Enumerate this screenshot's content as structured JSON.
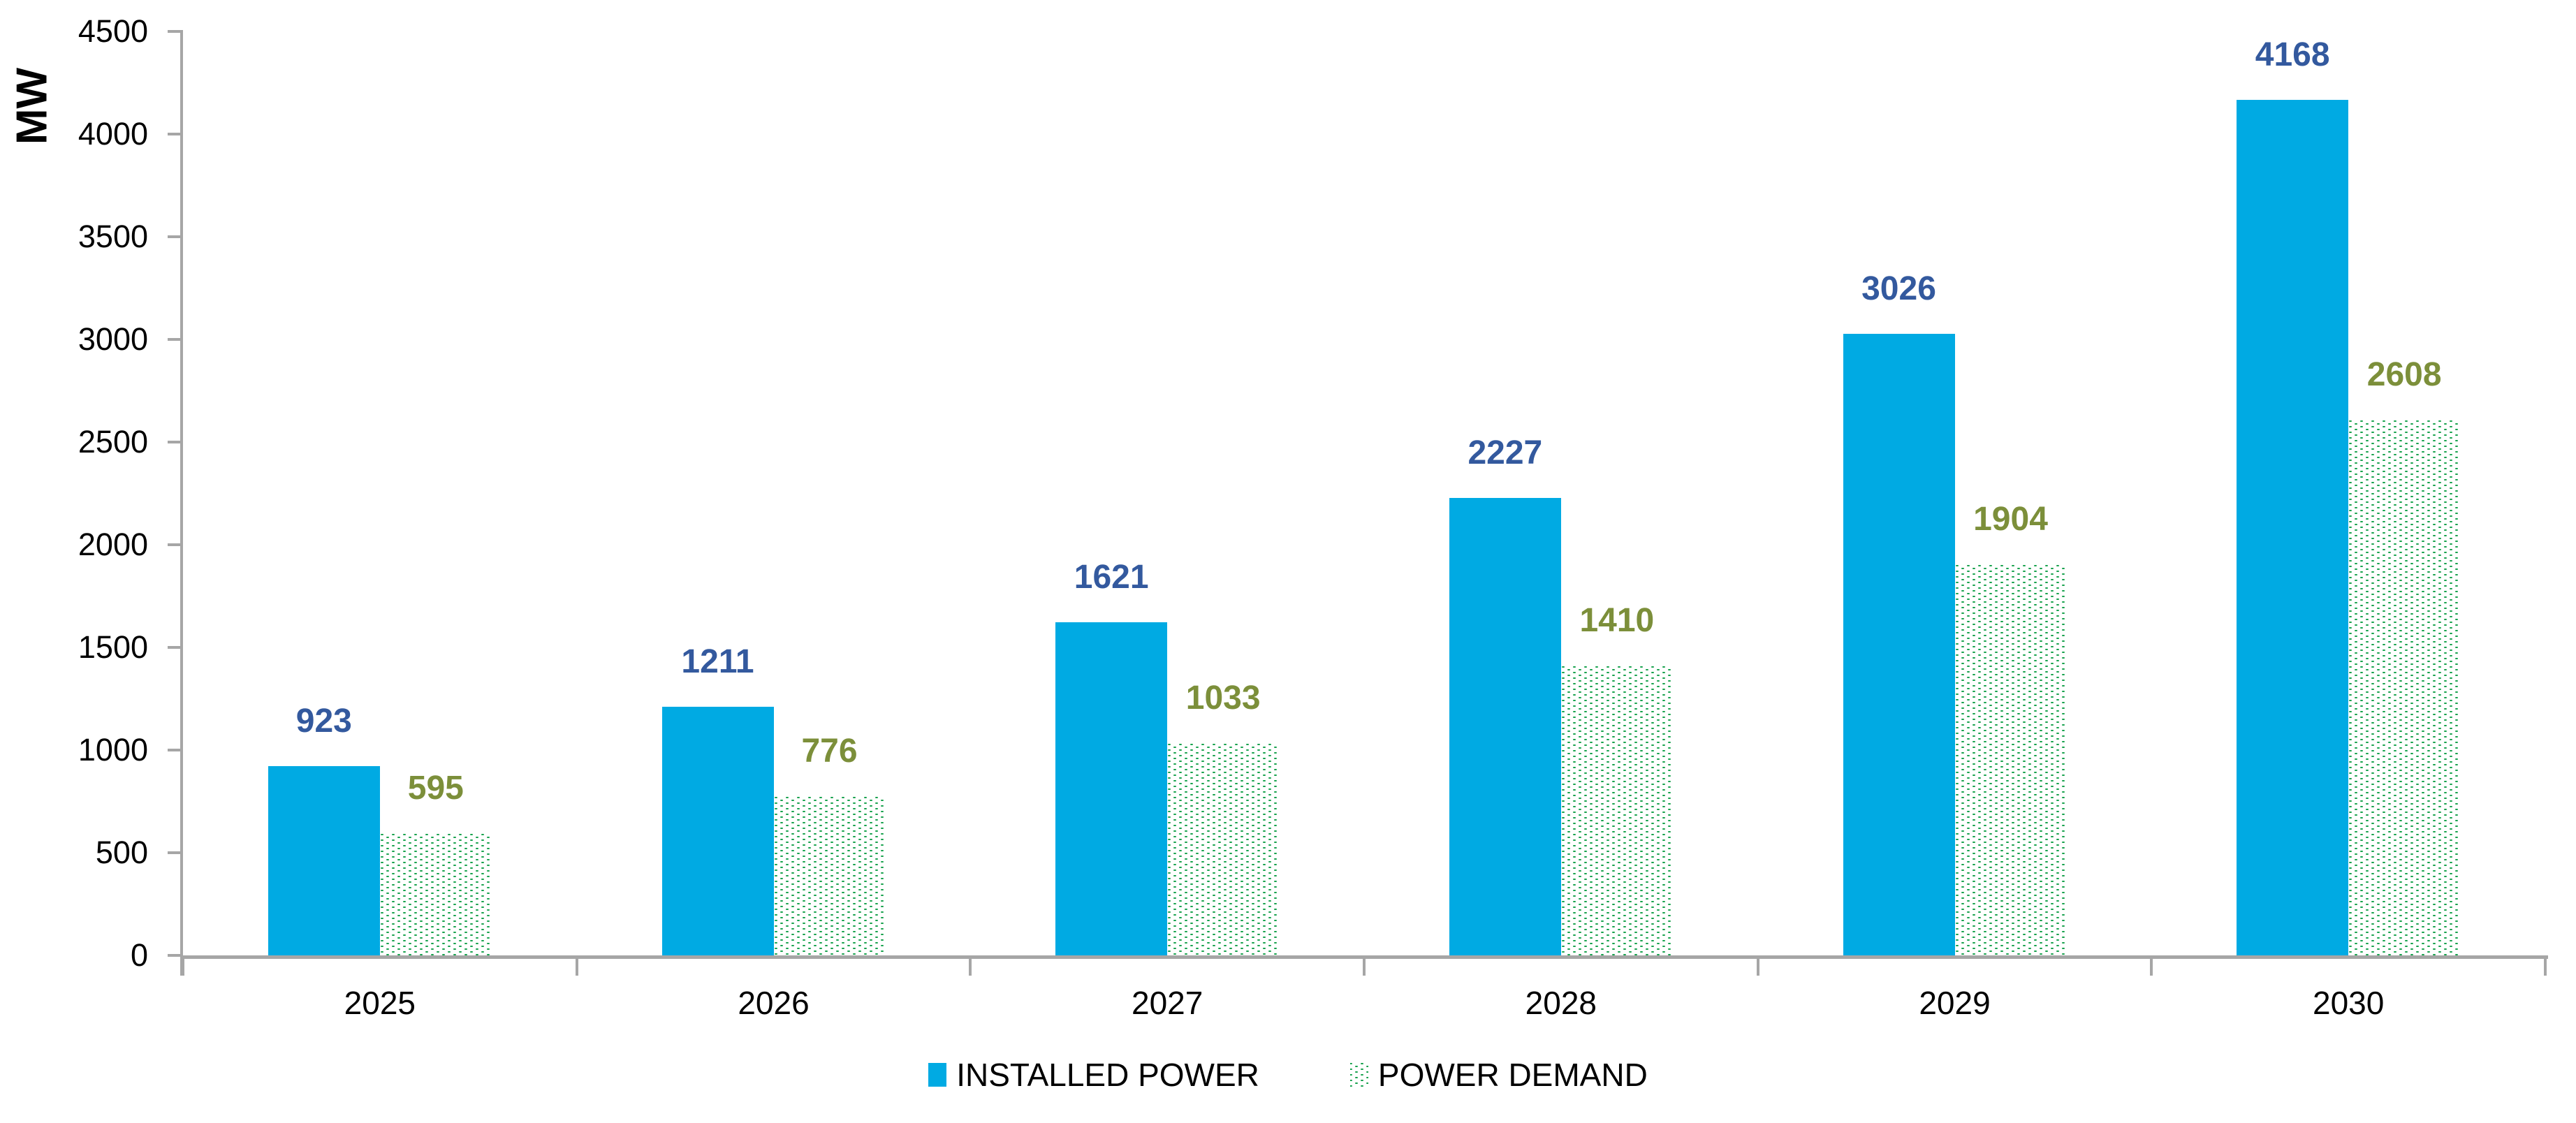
{
  "y_axis": {
    "title": "MW",
    "ticks": [
      0,
      500,
      1000,
      1500,
      2000,
      2500,
      3000,
      3500,
      4000,
      4500
    ]
  },
  "legend": {
    "items": [
      {
        "label": "INSTALLED POWER",
        "swatch": "solid-blue-square-icon"
      },
      {
        "label": "POWER DEMAND",
        "swatch": "green-dotted-square-icon"
      }
    ]
  },
  "colors": {
    "installed_power_bar": "#00AAE3",
    "power_demand_dots": "#18A24D",
    "installed_power_value_label": "#33599E",
    "power_demand_value_label": "#7C8F3A",
    "axis": "#A6A6A6",
    "text": "#000000"
  },
  "chart_data": {
    "type": "bar",
    "categories": [
      "2025",
      "2026",
      "2027",
      "2028",
      "2029",
      "2030"
    ],
    "series": [
      {
        "name": "INSTALLED POWER",
        "values": [
          923,
          1211,
          1621,
          2227,
          3026,
          4168
        ]
      },
      {
        "name": "POWER DEMAND",
        "values": [
          595,
          776,
          1033,
          1410,
          1904,
          2608
        ]
      }
    ],
    "value_labels_shown": true,
    "title": "",
    "xlabel": "",
    "ylabel": "MW",
    "ylim": [
      0,
      4500
    ],
    "ytick_step": 500,
    "grid": false,
    "legend_position": "bottom"
  }
}
